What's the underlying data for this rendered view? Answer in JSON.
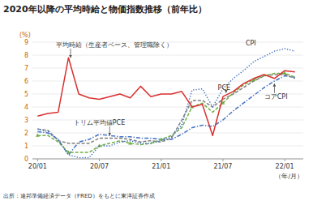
{
  "chart_data": {
    "type": "line",
    "title": "2020年以降の平均時給と物価指数推移（前年比）",
    "source": "出所：連邦準備経済データ（FRED）をもとに東洋証券作成",
    "ylabel": "(%)",
    "xlabel": "（年/月）",
    "x": [
      0,
      1,
      2,
      3,
      4,
      5,
      6,
      7,
      8,
      9,
      10,
      11,
      12,
      13,
      14,
      15,
      16,
      17,
      18,
      19,
      20,
      21,
      22,
      23,
      24,
      25
    ],
    "xlim": [
      -0.5,
      25.8
    ],
    "xticks": [
      {
        "value": 0,
        "label": "20/01"
      },
      {
        "value": 6,
        "label": "20/07"
      },
      {
        "value": 12,
        "label": "21/01"
      },
      {
        "value": 18,
        "label": "21/07"
      },
      {
        "value": 24,
        "label": "22/01"
      }
    ],
    "ylim": [
      0.0,
      9.0
    ],
    "yticks": [
      0,
      1,
      2,
      3,
      4,
      5,
      6,
      7,
      8,
      9
    ],
    "grid": true,
    "series": [
      {
        "color": "#4472c4",
        "line_style": "dashdot",
        "values": [
          2.1,
          2.0,
          1.5,
          0.3,
          1.3,
          1.5,
          1.9,
          1.8,
          1.7,
          1.7,
          1.6,
          1.6,
          1.5,
          1.5,
          1.9,
          2.4,
          2.6,
          2.5,
          3.0,
          3.7,
          4.3,
          4.9,
          5.5,
          6.0,
          6.4,
          6.3
        ]
      },
      {
        "color": "#7f7f7f",
        "line_style": "dashed",
        "values": [
          2.3,
          2.2,
          1.4,
          1.2,
          1.2,
          1.2,
          1.6,
          1.6,
          1.6,
          1.5,
          1.3,
          1.4,
          1.3,
          1.6,
          3.0,
          4.5,
          4.5,
          4.0,
          4.6,
          5.0,
          5.5,
          6.0,
          6.4,
          6.5,
          6.5,
          6.2
        ]
      },
      {
        "color": "#70ad47",
        "line_style": "dashed",
        "marker": "triangle",
        "values": [
          1.8,
          1.8,
          1.3,
          0.5,
          0.5,
          0.5,
          1.0,
          1.2,
          1.4,
          1.2,
          1.1,
          1.2,
          1.5,
          1.8,
          2.4,
          4.0,
          4.3,
          3.6,
          4.3,
          5.1,
          5.7,
          6.1,
          6.4,
          6.6,
          6.6,
          6.3
        ]
      },
      {
        "color": "#4472c4",
        "line_style": "dotted",
        "values": [
          2.3,
          2.1,
          1.5,
          0.3,
          0.1,
          0.1,
          1.0,
          1.0,
          1.3,
          1.4,
          1.2,
          1.2,
          1.4,
          1.7,
          2.6,
          5.3,
          5.4,
          4.0,
          5.4,
          6.2,
          6.8,
          7.5,
          7.9,
          8.3,
          8.5,
          8.3
        ]
      },
      {
        "color": "#d93030",
        "line_style": "solid",
        "values": [
          3.3,
          3.5,
          3.6,
          7.8,
          5.0,
          4.7,
          4.6,
          4.8,
          5.0,
          4.7,
          5.6,
          4.8,
          5.0,
          5.0,
          5.2,
          4.0,
          4.2,
          1.8,
          4.8,
          5.2,
          5.8,
          6.2,
          6.5,
          6.2,
          6.8,
          6.7
        ]
      }
    ],
    "annotations": [
      {
        "text": "平均時給（生産者ベース、管理職除く）",
        "x": 3.2,
        "y": 7.8,
        "text_x": 1.8,
        "text_y": 8.5
      },
      {
        "text": "トリム平均値PCE",
        "x": 7.0,
        "y": 1.8,
        "text_x": 3.5,
        "text_y": 2.8
      },
      {
        "text": "CPI",
        "x": 20.2,
        "y": 8.6
      },
      {
        "text": "PCE",
        "x": 18.3,
        "y": 5.1,
        "text_x": 17.5,
        "text_y": 5.5
      },
      {
        "text": "コアCPI",
        "x": 23.0,
        "y": 5.8,
        "text_x": 22.0,
        "text_y": 4.8
      }
    ]
  }
}
